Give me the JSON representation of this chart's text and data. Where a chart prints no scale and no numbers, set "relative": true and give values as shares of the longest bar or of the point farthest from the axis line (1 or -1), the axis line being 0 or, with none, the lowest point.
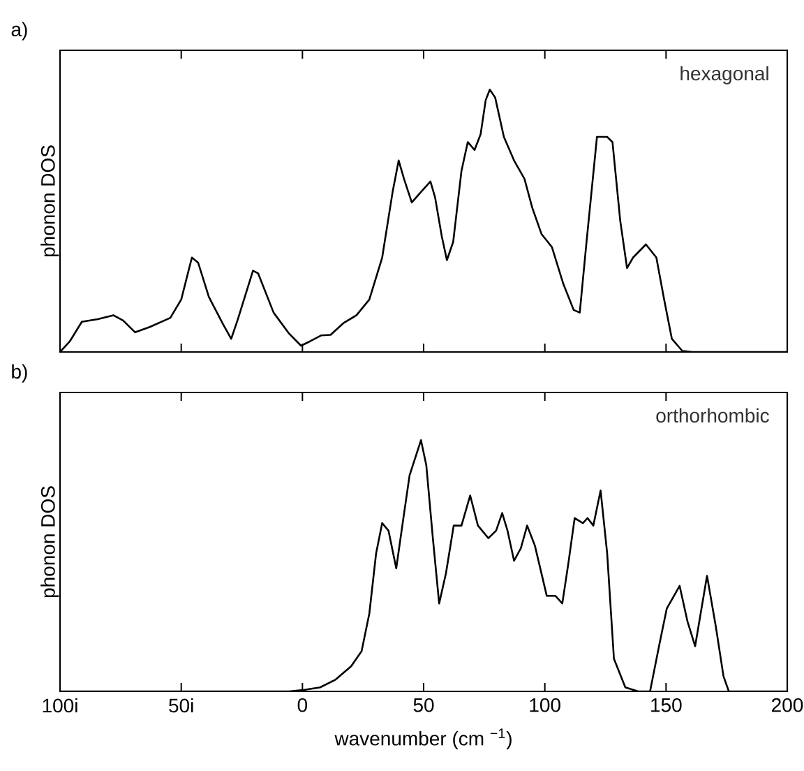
{
  "chart_data": [
    {
      "type": "line",
      "title": "a)",
      "ylabel": "phonon DOS",
      "annotations": [
        "hexagonal"
      ],
      "relative": true,
      "tick_labels": false,
      "color": "#000000",
      "xlim": [
        -100,
        200
      ],
      "xticks": [
        -50,
        0,
        50,
        100,
        150
      ],
      "x": [
        -100,
        -96,
        -91,
        -84.4,
        -78,
        -74,
        -69,
        -63,
        -54.5,
        -50,
        -45.6,
        -43,
        -38.6,
        -33,
        -29.4,
        -26.8,
        -20.4,
        -18.3,
        -11.9,
        -5.5,
        -0.6,
        3,
        7.7,
        11.6,
        16.9,
        22.3,
        27.6,
        32.9,
        37.2,
        39.7,
        41.9,
        45.1,
        48.9,
        52.8,
        54.7,
        57.5,
        59.6,
        62.2,
        65.6,
        68.2,
        71.0,
        73.5,
        75.6,
        77.3,
        79.5,
        83.1,
        87.3,
        91.6,
        94.8,
        98.6,
        102.9,
        107.6,
        111.9,
        114.4,
        117.2,
        121.5,
        125.7,
        127.9,
        131.1,
        133.9,
        136.4,
        141.7,
        146.0,
        149.2,
        152.4,
        156.7,
        161,
        200
      ],
      "values": [
        0,
        0.04,
        0.115,
        0.125,
        0.14,
        0.12,
        0.075,
        0.095,
        0.13,
        0.2,
        0.36,
        0.34,
        0.21,
        0.11,
        0.05,
        0.12,
        0.31,
        0.3,
        0.15,
        0.07,
        0.024,
        0.04,
        0.063,
        0.065,
        0.11,
        0.14,
        0.2,
        0.36,
        0.61,
        0.73,
        0.66,
        0.57,
        0.61,
        0.65,
        0.59,
        0.44,
        0.35,
        0.42,
        0.69,
        0.8,
        0.77,
        0.83,
        0.96,
        1,
        0.97,
        0.82,
        0.73,
        0.66,
        0.55,
        0.45,
        0.4,
        0.26,
        0.16,
        0.15,
        0.42,
        0.82,
        0.82,
        0.8,
        0.5,
        0.32,
        0.36,
        0.41,
        0.36,
        0.2,
        0.05,
        0.004,
        0,
        0
      ]
    },
    {
      "type": "line",
      "title": "b)",
      "xlabel": "wavenumber (cm $^{−1}$)",
      "ylabel": "phonon DOS",
      "annotations": [
        "orthorhombic"
      ],
      "relative": true,
      "tick_labels": "x",
      "color": "#000000",
      "xlim": [
        -100,
        200
      ],
      "xticks": [
        {
          "value": -100,
          "label": "100i"
        },
        {
          "value": -50,
          "label": "50i"
        },
        0,
        50,
        100,
        150,
        200
      ],
      "x": [
        -100,
        -5.5,
        0.9,
        7.3,
        13.7,
        20.1,
        24.4,
        27.6,
        30.4,
        32.9,
        35.5,
        38.7,
        41.5,
        44.2,
        48.9,
        51.1,
        53.8,
        56.4,
        59.2,
        62.4,
        65.6,
        69.2,
        72.4,
        76.7,
        79.9,
        82.4,
        84.6,
        87.3,
        90.1,
        92.7,
        95.9,
        100.8,
        104.4,
        107.2,
        109.7,
        112.3,
        115.7,
        117.6,
        120,
        123,
        125.7,
        128.5,
        133.2,
        138.5,
        143.4,
        147.1,
        150.3,
        155.6,
        158.8,
        162,
        166.9,
        170.5,
        173.7,
        175.9,
        200
      ],
      "values": [
        0,
        0,
        0.006,
        0.016,
        0.047,
        0.1,
        0.16,
        0.31,
        0.55,
        0.67,
        0.64,
        0.49,
        0.68,
        0.86,
        1,
        0.9,
        0.61,
        0.35,
        0.47,
        0.66,
        0.66,
        0.78,
        0.66,
        0.61,
        0.64,
        0.71,
        0.64,
        0.52,
        0.57,
        0.66,
        0.58,
        0.38,
        0.38,
        0.35,
        0.51,
        0.69,
        0.67,
        0.69,
        0.66,
        0.8,
        0.55,
        0.13,
        0.016,
        0,
        0,
        0.18,
        0.33,
        0.42,
        0.28,
        0.18,
        0.46,
        0.26,
        0.06,
        0,
        0
      ]
    }
  ]
}
